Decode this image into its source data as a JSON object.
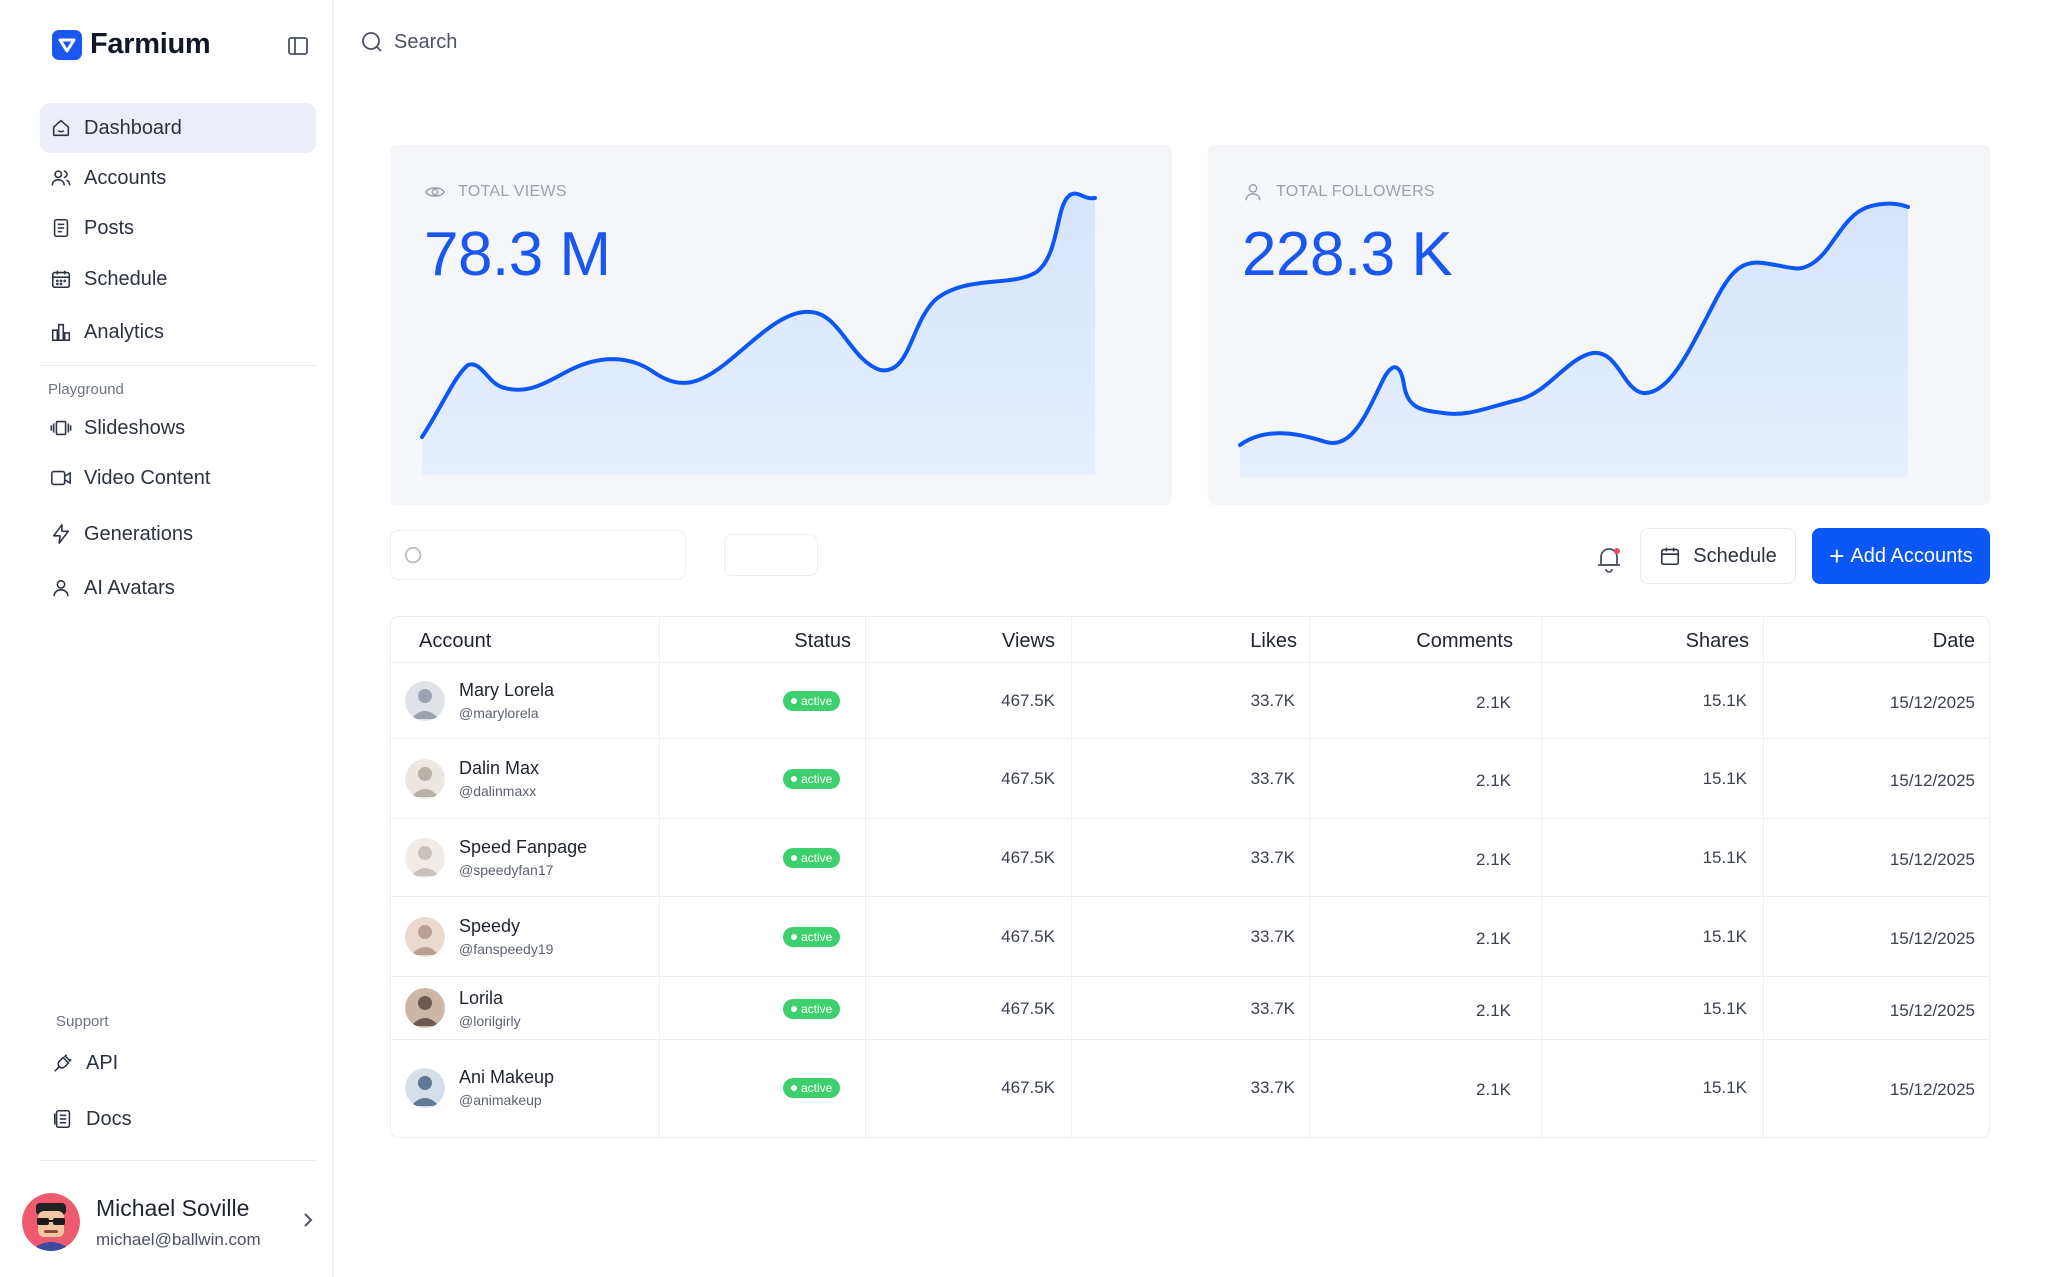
{
  "brand": {
    "name": "Farmium",
    "accent": "#1a56f0"
  },
  "nav": {
    "main": [
      {
        "label": "Dashboard",
        "icon": "home-icon",
        "active": true
      },
      {
        "label": "Accounts",
        "icon": "users-icon"
      },
      {
        "label": "Posts",
        "icon": "document-icon"
      },
      {
        "label": "Schedule",
        "icon": "calendar-icon"
      },
      {
        "label": "Analytics",
        "icon": "bar-chart-icon"
      }
    ],
    "playground_label": "Playground",
    "playground": [
      {
        "label": "Slideshows",
        "icon": "slides-icon"
      },
      {
        "label": "Video Content",
        "icon": "video-icon"
      },
      {
        "label": "Generations",
        "icon": "lightning-icon"
      },
      {
        "label": "AI Avatars",
        "icon": "person-icon"
      }
    ],
    "support_label": "Support",
    "support": [
      {
        "label": "API",
        "icon": "plug-icon"
      },
      {
        "label": "Docs",
        "icon": "docs-icon"
      }
    ]
  },
  "user": {
    "name": "Michael Soville",
    "email": "michael@ballwin.com"
  },
  "search": {
    "label": "Search"
  },
  "stats": [
    {
      "label": "TOTAL VIEWS",
      "value": "78.3 M",
      "icon": "eye-icon"
    },
    {
      "label": "TOTAL FOLLOWERS",
      "value": "228.3 K",
      "icon": "person-icon"
    }
  ],
  "toolbar": {
    "schedule_label": "Schedule",
    "add_label": "Add Accounts"
  },
  "table": {
    "headers": [
      "Account",
      "Status",
      "Views",
      "Likes",
      "Comments",
      "Shares",
      "Date"
    ],
    "rows": [
      {
        "name": "Mary Lorela",
        "handle": "@marylorela",
        "status": "active",
        "views": "467.5K",
        "likes": "33.7K",
        "comments": "2.1K",
        "shares": "15.1K",
        "date": "15/12/2025"
      },
      {
        "name": "Dalin Max",
        "handle": "@dalinmaxx",
        "status": "active",
        "views": "467.5K",
        "likes": "33.7K",
        "comments": "2.1K",
        "shares": "15.1K",
        "date": "15/12/2025"
      },
      {
        "name": "Speed Fanpage",
        "handle": "@speedyfan17",
        "status": "active",
        "views": "467.5K",
        "likes": "33.7K",
        "comments": "2.1K",
        "shares": "15.1K",
        "date": "15/12/2025"
      },
      {
        "name": "Speedy",
        "handle": "@fanspeedy19",
        "status": "active",
        "views": "467.5K",
        "likes": "33.7K",
        "comments": "2.1K",
        "shares": "15.1K",
        "date": "15/12/2025"
      },
      {
        "name": "Lorila",
        "handle": "@lorilgirly",
        "status": "active",
        "views": "467.5K",
        "likes": "33.7K",
        "comments": "2.1K",
        "shares": "15.1K",
        "date": "15/12/2025"
      },
      {
        "name": "Ani Makeup",
        "handle": "@animakeup",
        "status": "active",
        "views": "467.5K",
        "likes": "33.7K",
        "comments": "2.1K",
        "shares": "15.1K",
        "date": "15/12/2025"
      }
    ]
  },
  "colors": {
    "primary": "#0b57f5",
    "active_badge": "#3ecf6e",
    "card_bg": "#f5f6f9"
  }
}
